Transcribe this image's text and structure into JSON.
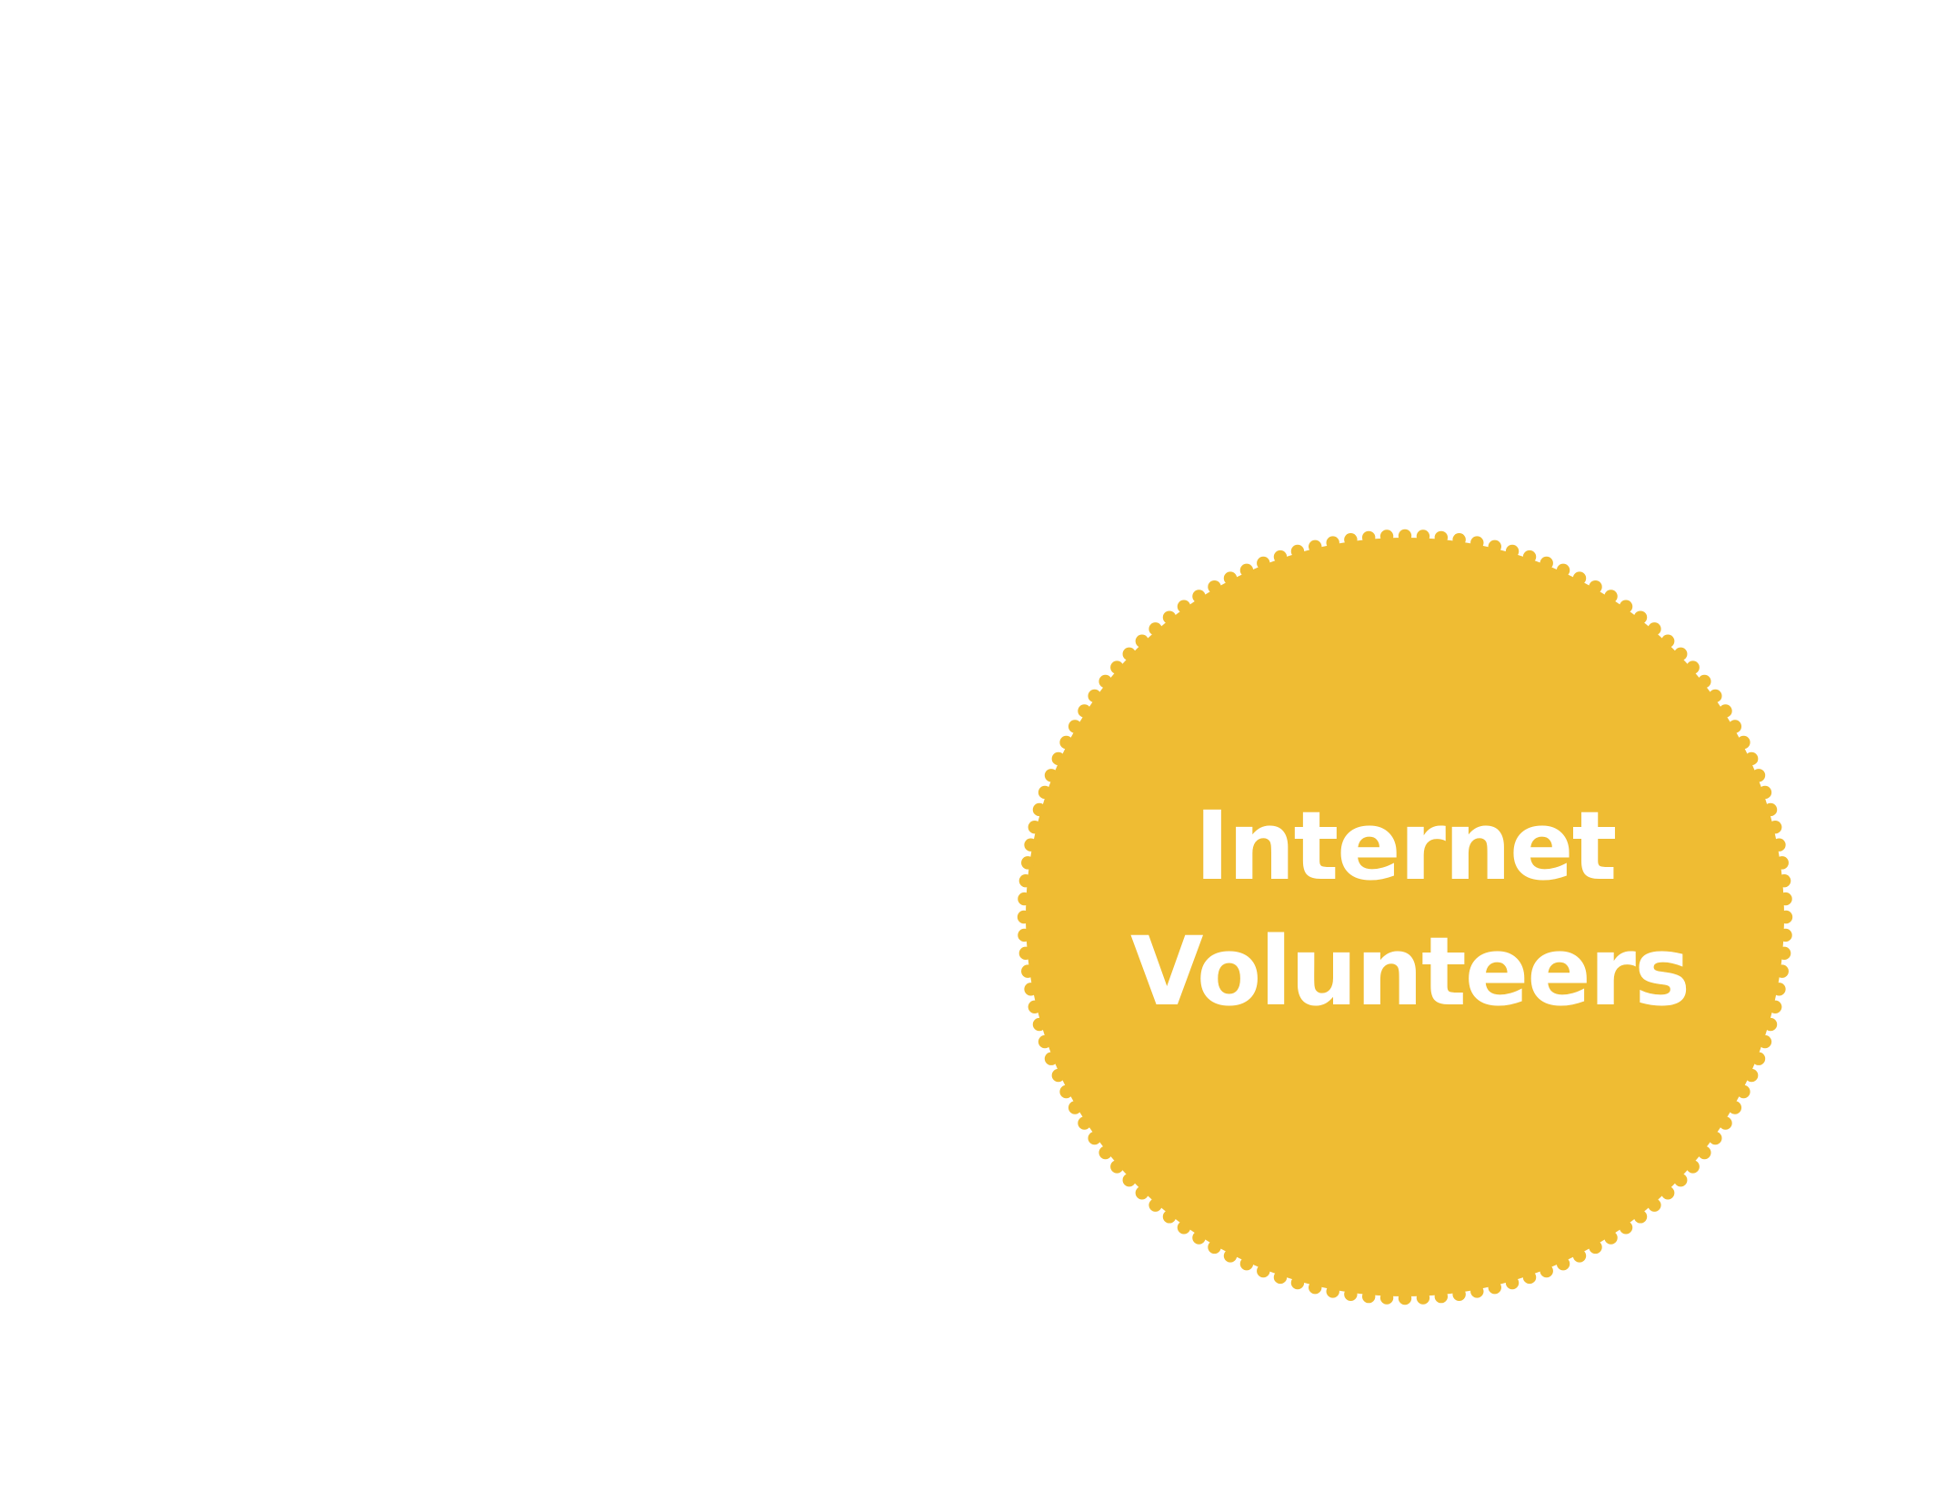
{
  "badge": {
    "line1": "Internet",
    "line2": "Volunteers",
    "fill_color": "#EFBC33",
    "text_color": "#FFFFFF",
    "shape": "scalloped-circle-seal"
  }
}
